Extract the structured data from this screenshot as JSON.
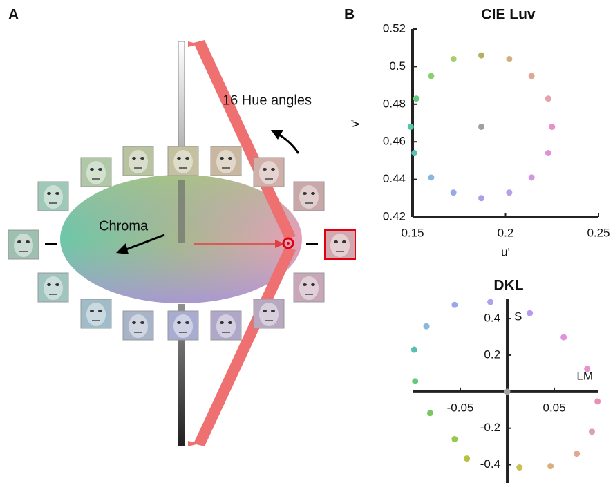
{
  "panel_a": {
    "label": "A",
    "hue_text": "16 Hue angles",
    "chroma_text": "Chroma"
  },
  "chart_data": [
    {
      "type": "scatter",
      "panel_label": "B",
      "title": "CIE Luv",
      "xlabel": "u'",
      "ylabel": "v'",
      "x": [
        0.187,
        0.202,
        0.172,
        0.16,
        0.214,
        0.152,
        0.223,
        0.149,
        0.225,
        0.151,
        0.223,
        0.16,
        0.214,
        0.172,
        0.202,
        0.187
      ],
      "y": [
        0.506,
        0.504,
        0.504,
        0.495,
        0.495,
        0.483,
        0.483,
        0.468,
        0.468,
        0.454,
        0.454,
        0.441,
        0.441,
        0.433,
        0.433,
        0.43
      ],
      "center": [
        0.187,
        0.468
      ],
      "colors": [
        "#b5b060",
        "#d0b080",
        "#a8cc70",
        "#88d070",
        "#e0a890",
        "#68cc80",
        "#e8a0b0",
        "#50c8a8",
        "#e890c8",
        "#58c0b8",
        "#e090d8",
        "#88b8e0",
        "#d098e0",
        "#98a8e8",
        "#b8a0e8",
        "#a8a0e8"
      ],
      "center_color": "#a0a0a0",
      "xlim": [
        0.15,
        0.25
      ],
      "ylim": [
        0.42,
        0.52
      ],
      "xticks": [
        0.15,
        0.2,
        0.25
      ],
      "yticks": [
        0.42,
        0.44,
        0.46,
        0.48,
        0.5,
        0.52
      ]
    },
    {
      "type": "scatter",
      "title": "DKL",
      "xlabel": "LM",
      "ylabel": "S",
      "axes_at_origin": true,
      "x": [
        -0.018,
        0.024,
        -0.056,
        -0.086,
        0.06,
        -0.099,
        0.085,
        -0.098,
        0.096,
        -0.082,
        0.09,
        -0.056,
        0.074,
        -0.043,
        0.046,
        0.013
      ],
      "y": [
        0.491,
        0.43,
        0.475,
        0.358,
        0.298,
        0.23,
        0.125,
        0.057,
        -0.053,
        -0.117,
        -0.219,
        -0.26,
        -0.34,
        -0.366,
        -0.408,
        -0.415
      ],
      "center": [
        0,
        0
      ],
      "colors": [
        "#b0a0f0",
        "#b898f0",
        "#98a8e8",
        "#88b8e0",
        "#e090e0",
        "#58c0b0",
        "#e890d0",
        "#68c878",
        "#e890b8",
        "#78c860",
        "#e0a0a8",
        "#98c850",
        "#e0a890",
        "#b8c040",
        "#d8b080",
        "#c8c050"
      ],
      "center_color": "#a0a0a0",
      "xlim": [
        -0.1,
        0.097
      ],
      "ylim": [
        -0.5,
        0.51
      ],
      "xticks": [
        -0.05,
        0.05
      ],
      "yticks": [
        -0.4,
        -0.2,
        0.2,
        0.4
      ]
    }
  ]
}
